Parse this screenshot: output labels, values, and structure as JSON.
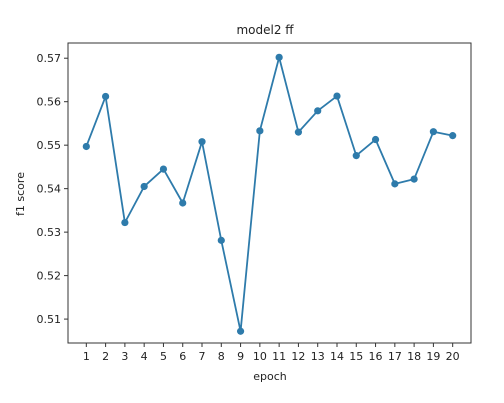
{
  "chart_data": {
    "type": "line",
    "title": "model2 ff",
    "xlabel": "epoch",
    "ylabel": "f1 score",
    "x": [
      1,
      2,
      3,
      4,
      5,
      6,
      7,
      8,
      9,
      10,
      11,
      12,
      13,
      14,
      15,
      16,
      17,
      18,
      19,
      20
    ],
    "x_tick_labels": [
      "1",
      "2",
      "3",
      "4",
      "5",
      "6",
      "7",
      "8",
      "9",
      "10",
      "11",
      "12",
      "13",
      "14",
      "15",
      "16",
      "17",
      "18",
      "19",
      "20"
    ],
    "y_ticks": [
      0.51,
      0.52,
      0.53,
      0.54,
      0.55,
      0.56,
      0.57
    ],
    "y_tick_labels": [
      "0.51",
      "0.52",
      "0.53",
      "0.54",
      "0.55",
      "0.56",
      "0.57"
    ],
    "ylim": [
      0.5045,
      0.5735
    ],
    "xlim": [
      0.05,
      20.95
    ],
    "grid": false,
    "series": [
      {
        "values": [
          0.5497,
          0.5612,
          0.5322,
          0.5405,
          0.5445,
          0.5367,
          0.5508,
          0.5281,
          0.5072,
          0.5533,
          0.5702,
          0.553,
          0.5579,
          0.5613,
          0.5476,
          0.5513,
          0.5411,
          0.5422,
          0.5531,
          0.5522
        ],
        "color": "#2e7bab"
      }
    ]
  }
}
